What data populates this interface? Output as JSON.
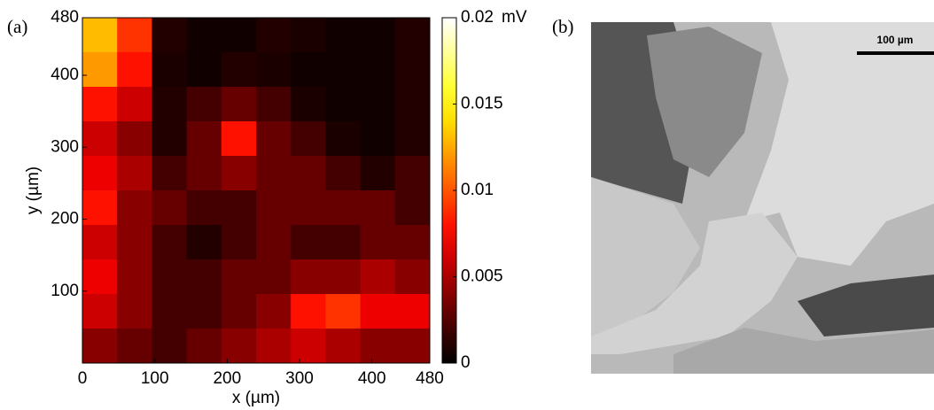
{
  "panel_a": {
    "label": "(a)"
  },
  "chart_data": {
    "type": "heatmap",
    "xlabel": "x (µm)",
    "ylabel": "y (µm)",
    "xlim": [
      0,
      480
    ],
    "ylim": [
      0,
      480
    ],
    "xticks": [
      0,
      100,
      200,
      300,
      400,
      480
    ],
    "yticks": [
      100,
      200,
      300,
      400,
      480
    ],
    "x": [
      24,
      72,
      120,
      168,
      216,
      264,
      312,
      360,
      408,
      456
    ],
    "y": [
      456,
      408,
      360,
      312,
      264,
      216,
      168,
      120,
      72,
      24
    ],
    "values": [
      [
        0.013,
        0.009,
        0.001,
        0.0005,
        0.0005,
        0.001,
        0.0008,
        0.0005,
        0.0005,
        0.001
      ],
      [
        0.012,
        0.008,
        0.0008,
        0.0005,
        0.001,
        0.0008,
        0.0005,
        0.0005,
        0.0005,
        0.001
      ],
      [
        0.008,
        0.006,
        0.001,
        0.002,
        0.003,
        0.002,
        0.0008,
        0.0005,
        0.0005,
        0.001
      ],
      [
        0.006,
        0.004,
        0.001,
        0.003,
        0.008,
        0.003,
        0.002,
        0.0008,
        0.0005,
        0.001
      ],
      [
        0.007,
        0.005,
        0.002,
        0.003,
        0.004,
        0.003,
        0.003,
        0.002,
        0.001,
        0.002
      ],
      [
        0.008,
        0.004,
        0.003,
        0.002,
        0.002,
        0.003,
        0.003,
        0.003,
        0.003,
        0.002
      ],
      [
        0.006,
        0.004,
        0.002,
        0.001,
        0.002,
        0.003,
        0.002,
        0.002,
        0.003,
        0.003
      ],
      [
        0.007,
        0.004,
        0.002,
        0.002,
        0.003,
        0.003,
        0.004,
        0.004,
        0.005,
        0.004
      ],
      [
        0.006,
        0.004,
        0.002,
        0.002,
        0.003,
        0.004,
        0.008,
        0.009,
        0.007,
        0.007
      ],
      [
        0.004,
        0.003,
        0.002,
        0.003,
        0.004,
        0.005,
        0.006,
        0.005,
        0.004,
        0.004
      ]
    ],
    "colormap": "hot",
    "clim": [
      0,
      0.02
    ],
    "cticks": [
      0,
      0.005,
      0.01,
      0.015,
      0.02
    ],
    "clabel": "mV"
  },
  "panel_b": {
    "label": "(b)",
    "scale_bar": "100 µm"
  }
}
